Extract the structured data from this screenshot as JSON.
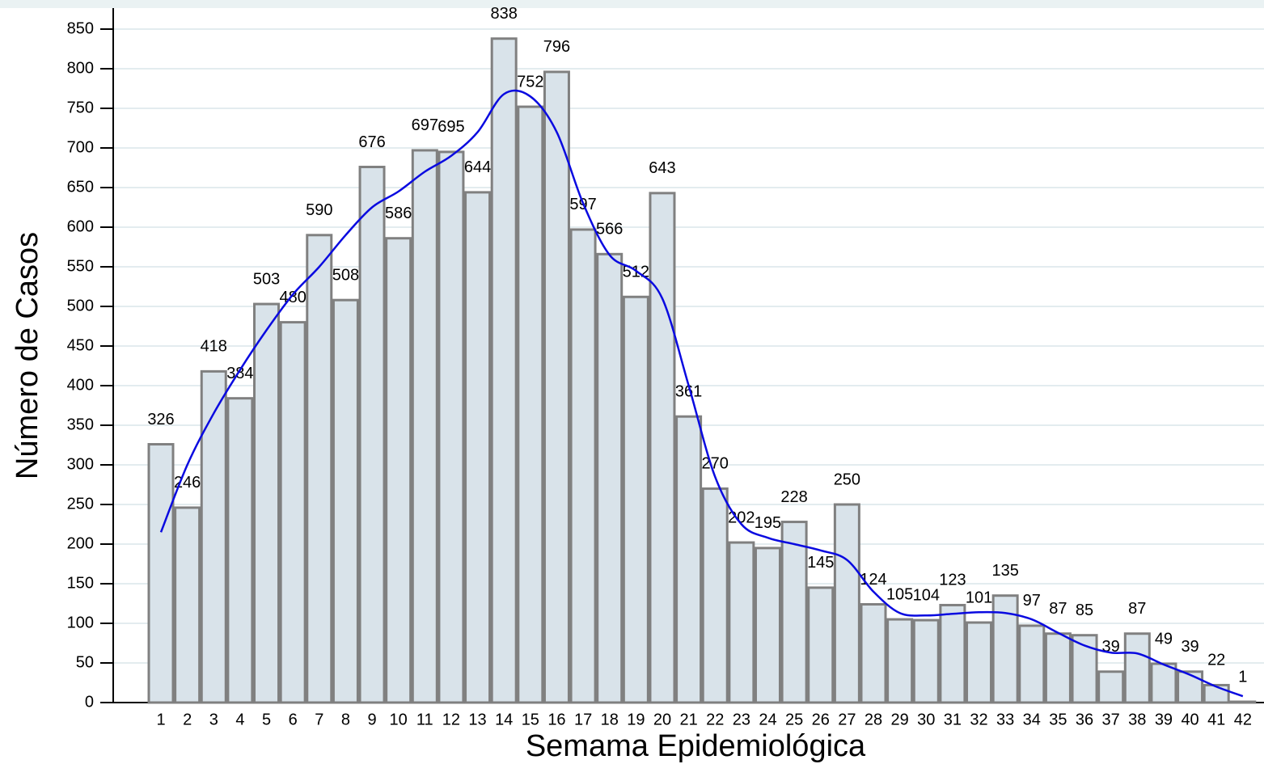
{
  "chart_data": {
    "type": "bar",
    "x_label": "Semama Epidemiológica",
    "y_label": "Número de Casos",
    "categories": [
      "1",
      "2",
      "3",
      "4",
      "5",
      "6",
      "7",
      "8",
      "9",
      "10",
      "11",
      "12",
      "13",
      "14",
      "15",
      "16",
      "17",
      "18",
      "19",
      "20",
      "21",
      "22",
      "23",
      "24",
      "25",
      "26",
      "27",
      "28",
      "29",
      "30",
      "31",
      "32",
      "33",
      "34",
      "35",
      "36",
      "37",
      "38",
      "39",
      "40",
      "41",
      "42"
    ],
    "series": [
      {
        "type": "bar",
        "color": "#d9e3ea",
        "values": [
          326,
          246,
          418,
          384,
          503,
          480,
          590,
          508,
          676,
          586,
          697,
          695,
          644,
          838,
          752,
          796,
          597,
          566,
          512,
          643,
          361,
          270,
          202,
          195,
          228,
          145,
          250,
          124,
          105,
          104,
          123,
          101,
          135,
          97,
          87,
          85,
          39,
          87,
          49,
          39,
          22,
          1
        ]
      },
      {
        "type": "line",
        "color": "#0a0ae0",
        "values": [
          215,
          300,
          365,
          420,
          470,
          515,
          550,
          590,
          625,
          645,
          670,
          690,
          720,
          768,
          765,
          720,
          630,
          565,
          545,
          510,
          400,
          285,
          225,
          208,
          200,
          192,
          180,
          140,
          113,
          110,
          112,
          114,
          113,
          105,
          88,
          72,
          63,
          62,
          48,
          35,
          20,
          8
        ]
      }
    ],
    "ylim": [
      0,
      850
    ],
    "yticks": [
      0,
      50,
      100,
      150,
      200,
      250,
      300,
      350,
      400,
      450,
      500,
      550,
      600,
      650,
      700,
      750,
      800,
      850
    ],
    "grid": true
  }
}
